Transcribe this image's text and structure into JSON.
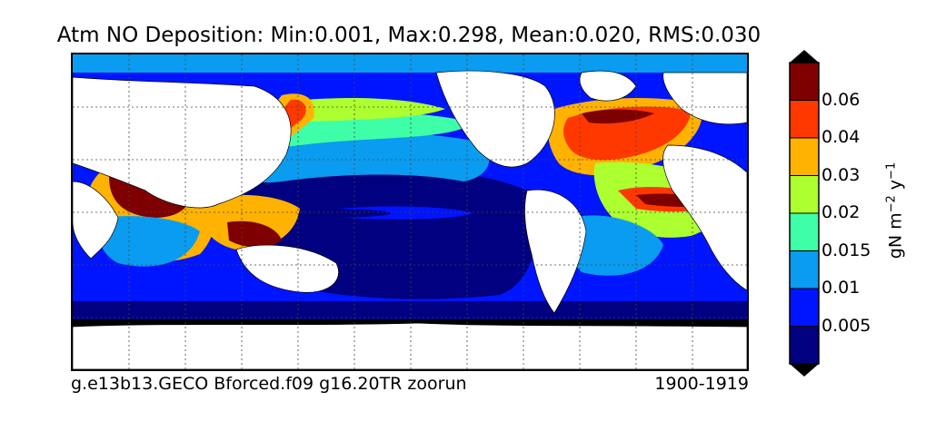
{
  "title": "Atm NO Deposition: Min:0.001, Max:0.298, Mean:0.020, RMS:0.030",
  "case_name": "g.e13b13.GECO Bforced.f09 g16.20TR zoorun",
  "years": "1900-1919",
  "colorbar": {
    "units_main": "gN m",
    "units_exp1": "−2",
    "units_mid": " y",
    "units_exp2": "−1",
    "ticks": [
      "0.005",
      "0.01",
      "0.015",
      "0.02",
      "0.03",
      "0.04",
      "0.06"
    ],
    "under_color": "#000000",
    "over_color": "#000000",
    "levels": [
      {
        "label": "<0.005",
        "color": "#000080"
      },
      {
        "label": "0.005-0.01",
        "color": "#0015ff"
      },
      {
        "label": "0.01-0.015",
        "color": "#0a9cf0"
      },
      {
        "label": "0.015-0.02",
        "color": "#3effa8"
      },
      {
        "label": "0.02-0.03",
        "color": "#adff2f"
      },
      {
        "label": "0.03-0.04",
        "color": "#ffb300"
      },
      {
        "label": "0.04-0.06",
        "color": "#ff3800"
      },
      {
        "label": ">0.06",
        "color": "#7f0000"
      }
    ]
  },
  "map_colors": {
    "land": "#ffffff",
    "antarctic_margin": "#000000",
    "grid": "#444444"
  }
}
